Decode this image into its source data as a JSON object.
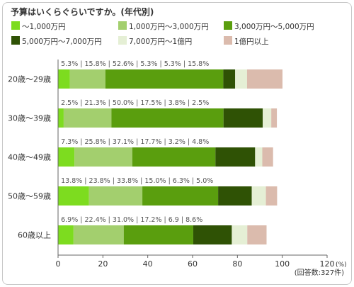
{
  "chart_data": {
    "type": "bar",
    "orientation": "horizontal",
    "stacked": true,
    "title": "予算はいくらぐらいですか。(年代別)",
    "categories": [
      "20歳～29歳",
      "30歳～39歳",
      "40歳～49歳",
      "50歳～59歳",
      "60歳以上"
    ],
    "series": [
      {
        "name": "～1,000万円",
        "color": "#7ddc1f",
        "values": [
          5.3,
          2.5,
          7.3,
          13.8,
          6.9
        ]
      },
      {
        "name": "1,000万円～3,000万円",
        "color": "#a3cf6e",
        "values": [
          15.8,
          21.3,
          25.8,
          23.8,
          22.4
        ]
      },
      {
        "name": "3,000万円～5,000万円",
        "color": "#5a9e0e",
        "values": [
          52.6,
          50.0,
          37.1,
          33.8,
          31.0
        ]
      },
      {
        "name": "5,000万円～7,000万円",
        "color": "#2f5205",
        "values": [
          5.3,
          17.5,
          17.7,
          15.0,
          17.2
        ]
      },
      {
        "name": "7,000万円～1億円",
        "color": "#e5efd5",
        "values": [
          5.3,
          3.8,
          3.2,
          6.3,
          6.9
        ]
      },
      {
        "name": "1億円以上",
        "color": "#dbbbad",
        "values": [
          15.8,
          2.5,
          4.8,
          5.0,
          8.6
        ]
      }
    ],
    "value_labels": [
      "5.3% | 15.8% | 52.6% | 5.3% | 5.3% | 15.8%",
      "2.5% | 21.3% | 50.0% | 17.5% | 3.8% | 2.5%",
      "7.3% | 25.8% | 37.1% | 17.7% | 3.2% | 4.8%",
      "13.8% | 23.8% | 33.8% | 15.0% | 6.3% | 5.0%",
      "6.9% | 22.4% | 31.0% | 17.2% | 6.9 | 8.6%"
    ],
    "xlim": [
      0,
      120
    ],
    "xticks": [
      "0",
      "20",
      "40",
      "60",
      "80",
      "100",
      "120"
    ],
    "x_unit": "(%)",
    "note": "(回答数:327件)",
    "legend_position": "top",
    "grid": false
  }
}
